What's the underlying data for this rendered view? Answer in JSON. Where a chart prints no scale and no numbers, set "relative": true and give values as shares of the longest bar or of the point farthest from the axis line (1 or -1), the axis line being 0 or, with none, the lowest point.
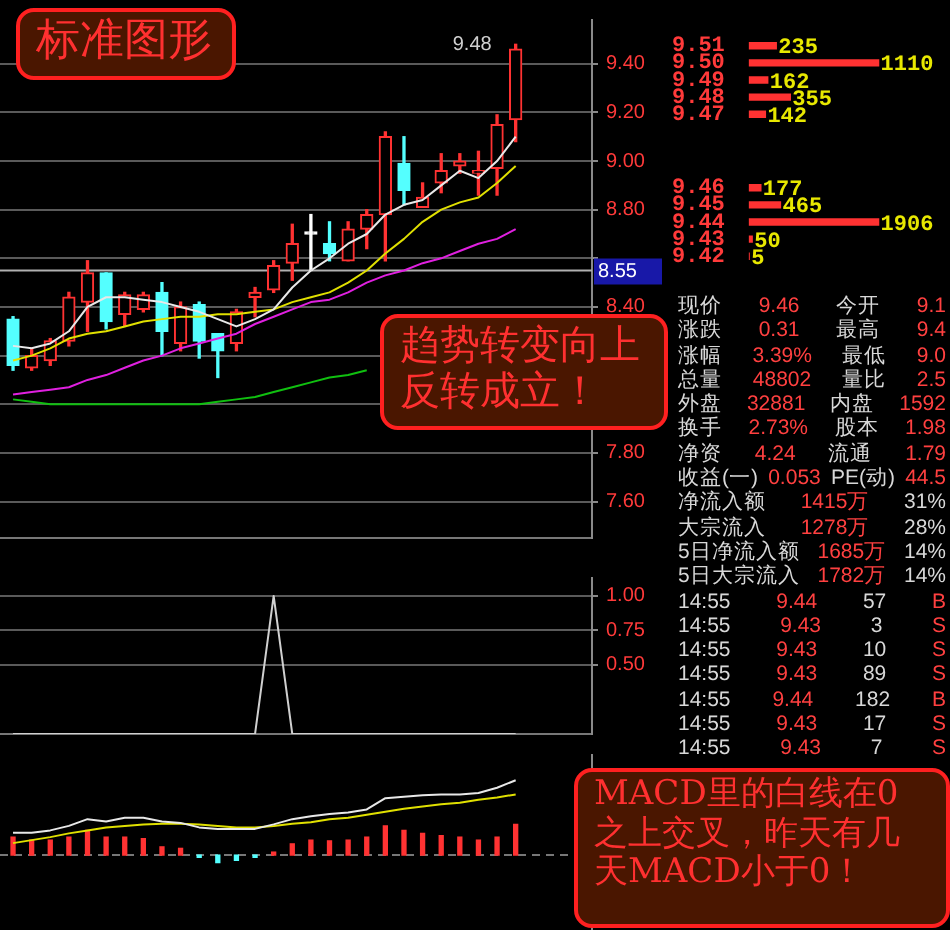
{
  "chart_data": [
    {
      "type": "candlestick",
      "categories": [
        null,
        null,
        null,
        null,
        null,
        null,
        null,
        null,
        null,
        null,
        null,
        null,
        null,
        null,
        null,
        null,
        null,
        null,
        null,
        null,
        null,
        null,
        null,
        null,
        null,
        null,
        null,
        null
      ],
      "ohlc": [
        [
          8.35,
          8.36,
          8.14,
          8.16
        ],
        [
          8.15,
          8.23,
          8.14,
          8.2
        ],
        [
          8.18,
          8.27,
          8.16,
          8.26
        ],
        [
          8.26,
          8.46,
          8.24,
          8.44
        ],
        [
          8.42,
          8.59,
          8.3,
          8.54
        ],
        [
          8.54,
          8.54,
          8.31,
          8.34
        ],
        [
          8.37,
          8.46,
          8.32,
          8.45
        ],
        [
          8.39,
          8.46,
          8.38,
          8.45
        ],
        [
          8.46,
          8.5,
          8.2,
          8.3
        ],
        [
          8.25,
          8.42,
          8.22,
          8.4
        ],
        [
          8.41,
          8.42,
          8.19,
          8.26
        ],
        [
          8.29,
          8.29,
          8.11,
          8.22
        ],
        [
          8.25,
          8.39,
          8.22,
          8.38
        ],
        [
          8.44,
          8.48,
          8.36,
          8.46
        ],
        [
          8.47,
          8.59,
          8.46,
          8.57
        ],
        [
          8.58,
          8.74,
          8.51,
          8.66
        ],
        [
          8.7,
          8.78,
          8.55,
          8.7
        ],
        [
          8.66,
          8.75,
          8.59,
          8.62
        ],
        [
          8.59,
          8.75,
          8.59,
          8.72
        ],
        [
          8.72,
          8.8,
          8.64,
          8.78
        ],
        [
          8.78,
          9.12,
          8.59,
          9.1
        ],
        [
          8.99,
          9.1,
          8.82,
          8.88
        ],
        [
          8.81,
          8.91,
          8.81,
          8.85
        ],
        [
          8.91,
          9.03,
          8.87,
          8.96
        ],
        [
          8.98,
          9.03,
          8.95,
          9.0
        ],
        [
          8.95,
          9.04,
          8.86,
          8.96
        ],
        [
          8.97,
          9.19,
          8.86,
          9.15
        ],
        [
          9.17,
          9.48,
          9.08,
          9.46
        ]
      ],
      "colors": [
        "#54ffff",
        "#ff3232",
        "#ff3232",
        "#ff3232",
        "#ff3232",
        "#54ffff",
        "#ff3232",
        "#ff3232",
        "#54ffff",
        "#ff3232",
        "#54ffff",
        "#54ffff",
        "#ff3232",
        "#ff3232",
        "#ff3232",
        "#ff3232",
        "#ffffff",
        "#54ffff",
        "#ff3232",
        "#ff3232",
        "#ff3232",
        "#54ffff",
        "#ff3232",
        "#ff3232",
        "#ff3232",
        "#ff3232",
        "#ff3232",
        "#ff3232"
      ],
      "series": [
        {
          "type": "line",
          "color": "#e8e8e8",
          "values": [
            8.24,
            8.23,
            8.25,
            8.3,
            8.4,
            8.44,
            8.44,
            8.43,
            8.42,
            8.4,
            8.38,
            8.35,
            8.32,
            8.35,
            8.39,
            8.48,
            8.55,
            8.6,
            8.66,
            8.7,
            8.78,
            8.82,
            8.84,
            8.9,
            8.96,
            8.93,
            9.0,
            9.1
          ]
        },
        {
          "type": "line",
          "color": "#e0e000",
          "values": [
            8.18,
            8.2,
            8.23,
            8.27,
            8.29,
            8.3,
            8.32,
            8.34,
            8.35,
            8.36,
            8.36,
            8.37,
            8.37,
            8.38,
            8.39,
            8.42,
            8.44,
            8.46,
            8.5,
            8.55,
            8.62,
            8.68,
            8.75,
            8.8,
            8.83,
            8.85,
            8.91,
            8.98
          ]
        },
        {
          "type": "line",
          "color": "#e020e0",
          "values": [
            8.04,
            8.05,
            8.06,
            8.07,
            8.1,
            8.12,
            8.15,
            8.18,
            8.2,
            8.23,
            8.25,
            8.27,
            8.29,
            8.33,
            8.36,
            8.39,
            8.42,
            8.43,
            8.46,
            8.5,
            8.53,
            8.55,
            8.58,
            8.6,
            8.63,
            8.66,
            8.68,
            8.72
          ]
        },
        {
          "type": "line",
          "color": "#10c010",
          "values": [
            8.02,
            8.01,
            8.0,
            8.0,
            8.0,
            8.0,
            8.0,
            8.0,
            8.0,
            8.0,
            8.0,
            8.01,
            8.02,
            8.03,
            8.05,
            8.07,
            8.09,
            8.11,
            8.12,
            8.14,
            null,
            null,
            null,
            null,
            null,
            null,
            null,
            null
          ]
        }
      ],
      "ylim": [
        7.45,
        9.58
      ],
      "yticks": [
        {
          "value": 7.6,
          "label": "7.60"
        },
        {
          "value": 7.8,
          "label": "7.80"
        },
        {
          "value": 8.0,
          "label": null
        },
        {
          "value": 8.2,
          "label": null
        },
        {
          "value": 8.4,
          "label": "8.40"
        },
        {
          "value": 8.6,
          "label": null
        },
        {
          "value": 8.8,
          "label": "8.80"
        },
        {
          "value": 9.0,
          "label": "9.00"
        },
        {
          "value": 9.2,
          "label": "9.20"
        },
        {
          "value": 9.4,
          "label": "9.40"
        }
      ],
      "grid": "y",
      "tick_labels": "y",
      "marker": "none",
      "ref_lines": [
        {
          "axis": "y",
          "value": 8.55,
          "label": "8.55",
          "color": "#b0b0b0"
        }
      ],
      "annotations": [
        "标准图形",
        "趋势转变向上反转成立！",
        "9.48"
      ]
    },
    {
      "type": "line",
      "categories": [
        null,
        null,
        null,
        null,
        null,
        null,
        null,
        null,
        null,
        null,
        null,
        null,
        null,
        null,
        null,
        null,
        null,
        null,
        null,
        null,
        null,
        null,
        null,
        null,
        null,
        null,
        null,
        null
      ],
      "series": [
        {
          "color": "#d0d0d0",
          "values": [
            0,
            0,
            0,
            0,
            0,
            0,
            0,
            0,
            0,
            0,
            0,
            0,
            0,
            0,
            1,
            0,
            0,
            0,
            0,
            0,
            0,
            0,
            0,
            0,
            0,
            0,
            0,
            0
          ]
        }
      ],
      "ylim": [
        0,
        1.13
      ],
      "yticks": [
        {
          "value": 0.5,
          "label": "0.50"
        },
        {
          "value": 0.75,
          "label": "0.75"
        },
        {
          "value": 1.0,
          "label": "1.00"
        }
      ],
      "grid": "y",
      "tick_labels": "y",
      "marker": "none"
    },
    {
      "type": "line",
      "relative": true,
      "categories": [
        null,
        null,
        null,
        null,
        null,
        null,
        null,
        null,
        null,
        null,
        null,
        null,
        null,
        null,
        null,
        null,
        null,
        null,
        null,
        null,
        null,
        null,
        null,
        null,
        null,
        null,
        null,
        null
      ],
      "series": [
        {
          "type": "bar",
          "colors": [
            "#ff3232",
            "#ff3232",
            "#ff3232",
            "#ff3232",
            "#ff3232",
            "#ff3232",
            "#ff3232",
            "#ff3232",
            "#ff3232",
            "#ff3232",
            "#54ffff",
            "#54ffff",
            "#54ffff",
            "#54ffff",
            "#ff3232",
            "#ff3232",
            "#ff3232",
            "#ff3232",
            "#ff3232",
            "#ff3232",
            "#ff3232",
            "#ff3232",
            "#ff3232",
            "#ff3232",
            "#ff3232",
            "#ff3232",
            "#ff3232",
            "#ff3232"
          ],
          "values": [
            0.24,
            0.2,
            0.2,
            0.24,
            0.33,
            0.24,
            0.24,
            0.22,
            0.11,
            0.09,
            -0.03,
            -0.1,
            -0.07,
            -0.03,
            0.04,
            0.15,
            0.2,
            0.19,
            0.2,
            0.24,
            0.39,
            0.33,
            0.29,
            0.26,
            0.24,
            0.2,
            0.24,
            0.41
          ]
        },
        {
          "type": "line",
          "color": "#e8e8e8",
          "values": [
            0.3,
            0.3,
            0.33,
            0.39,
            0.48,
            0.45,
            0.5,
            0.5,
            0.45,
            0.43,
            0.37,
            0.35,
            0.35,
            0.35,
            0.41,
            0.48,
            0.52,
            0.55,
            0.57,
            0.61,
            0.76,
            0.78,
            0.8,
            0.81,
            0.81,
            0.83,
            0.9,
            1
          ]
        },
        {
          "type": "line",
          "color": "#e0e000",
          "values": [
            0.16,
            0.2,
            0.24,
            0.29,
            0.33,
            0.37,
            0.39,
            0.41,
            0.42,
            0.42,
            0.41,
            0.39,
            0.37,
            0.37,
            0.39,
            0.42,
            0.44,
            0.48,
            0.5,
            0.54,
            0.58,
            0.62,
            0.65,
            0.68,
            0.7,
            0.74,
            0.77,
            0.81
          ]
        }
      ],
      "tick_labels": false,
      "marker": "none",
      "ref_lines": [
        {
          "axis": "y",
          "value": 0,
          "label": null,
          "color": "#777777",
          "line_style": "dashed"
        }
      ],
      "annotations": [
        "MACD里的白线在0之上交叉，昨天有几天MACD小于0！"
      ]
    },
    {
      "type": "bar",
      "orientation": "horizontal",
      "categories": [
        "9.51",
        "9.50",
        "9.49",
        "9.48",
        "9.47"
      ],
      "values": [
        235,
        1110,
        162,
        355,
        142
      ],
      "color": "#ff3232",
      "data_labels": true,
      "tick_labels": "y"
    },
    {
      "type": "bar",
      "orientation": "horizontal",
      "categories": [
        "9.46",
        "9.45",
        "9.44",
        "9.43",
        "9.42"
      ],
      "values": [
        177,
        465,
        1906,
        50,
        5
      ],
      "color": "#ff3232",
      "data_labels": true,
      "tick_labels": "y"
    },
    {
      "type": "other",
      "annotations": [
        "现价 9.46 今开 9.1",
        "涨跌 0.31 最高 9.4",
        "涨幅 3.39% 最低 9.0",
        "总量 48802 量比 2.5",
        "外盘 32881 内盘 1592",
        "换手 2.73% 股本 1.98",
        "净资 4.24 流通 1.79",
        "收益(一) 0.053 PE(动) 44.5",
        "净流入额 1415万 31%",
        "大宗流入 1278万 28%",
        "5日净流入额 1685万 14%",
        "5日大宗流入 1782万 14%",
        "14:55 9.44 57 B",
        "14:55 9.43 3 S",
        "14:55 9.43 10 S",
        "14:55 9.43 89 S",
        "14:55 9.44 182 B",
        "14:55 9.43 17 S",
        "14:55 9.43 7 S"
      ]
    }
  ]
}
